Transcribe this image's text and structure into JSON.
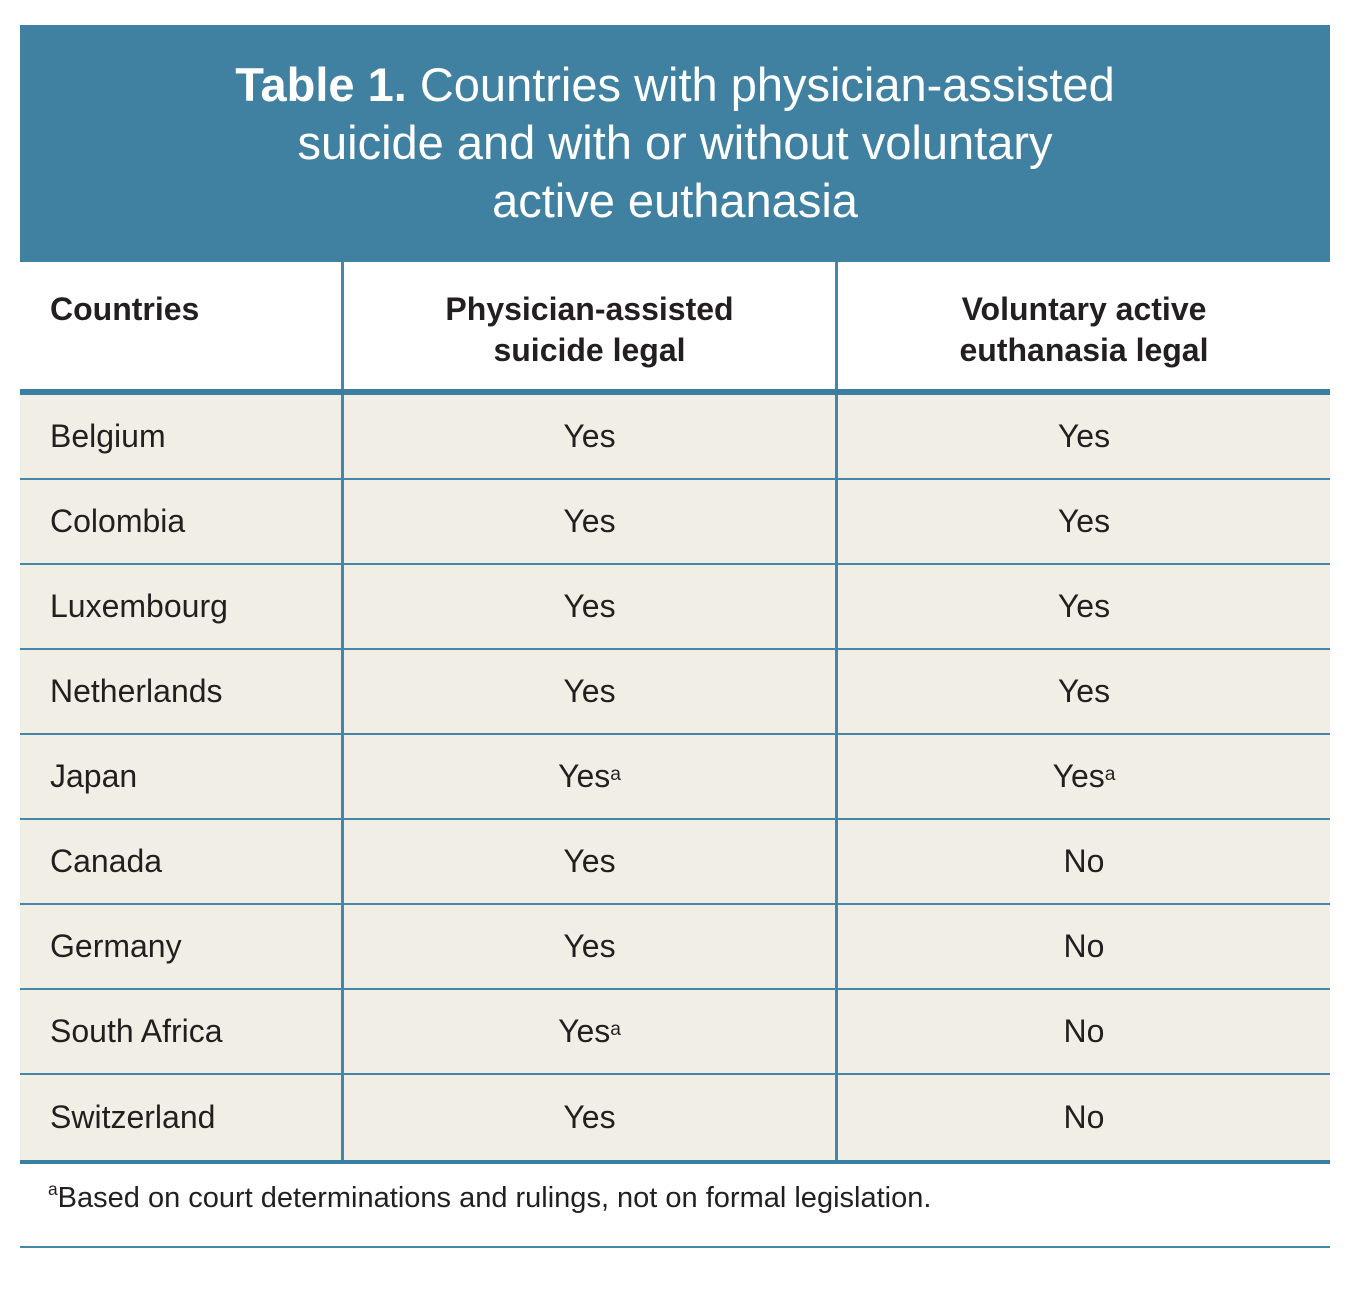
{
  "colors": {
    "header_bg": "#4080a1",
    "accent_line": "#3a7ea1",
    "grid_line": "#4587a8",
    "row_bg": "#f1efe5",
    "text": "#231f20",
    "title_text": "#ffffff"
  },
  "title": {
    "label_bold": "Table 1.",
    "line1_rest": " Countries with physician-assisted",
    "line2": "suicide and with or without voluntary",
    "line3": "active euthanasia"
  },
  "table": {
    "columns": {
      "countries_label": "Countries",
      "pas_label_line1": "Physician-assisted",
      "pas_label_line2": "suicide legal",
      "vae_label_line1": "Voluntary active",
      "vae_label_line2": "euthanasia legal"
    },
    "rows": [
      {
        "country": "Belgium",
        "pas": "Yes",
        "pas_sup": "",
        "vae": "Yes",
        "vae_sup": ""
      },
      {
        "country": "Colombia",
        "pas": "Yes",
        "pas_sup": "",
        "vae": "Yes",
        "vae_sup": ""
      },
      {
        "country": "Luxembourg",
        "pas": "Yes",
        "pas_sup": "",
        "vae": "Yes",
        "vae_sup": ""
      },
      {
        "country": "Netherlands",
        "pas": "Yes",
        "pas_sup": "",
        "vae": "Yes",
        "vae_sup": ""
      },
      {
        "country": "Japan",
        "pas": "Yes",
        "pas_sup": "a",
        "vae": "Yes",
        "vae_sup": "a"
      },
      {
        "country": "Canada",
        "pas": "Yes",
        "pas_sup": "",
        "vae": "No",
        "vae_sup": ""
      },
      {
        "country": "Germany",
        "pas": "Yes",
        "pas_sup": "",
        "vae": "No",
        "vae_sup": ""
      },
      {
        "country": "South Africa",
        "pas": "Yes",
        "pas_sup": "a",
        "vae": "No",
        "vae_sup": ""
      },
      {
        "country": "Switzerland",
        "pas": "Yes",
        "pas_sup": "",
        "vae": "No",
        "vae_sup": ""
      }
    ]
  },
  "footnote": {
    "marker": "a",
    "text": "Based on court determinations and rulings, not on formal legislation."
  }
}
